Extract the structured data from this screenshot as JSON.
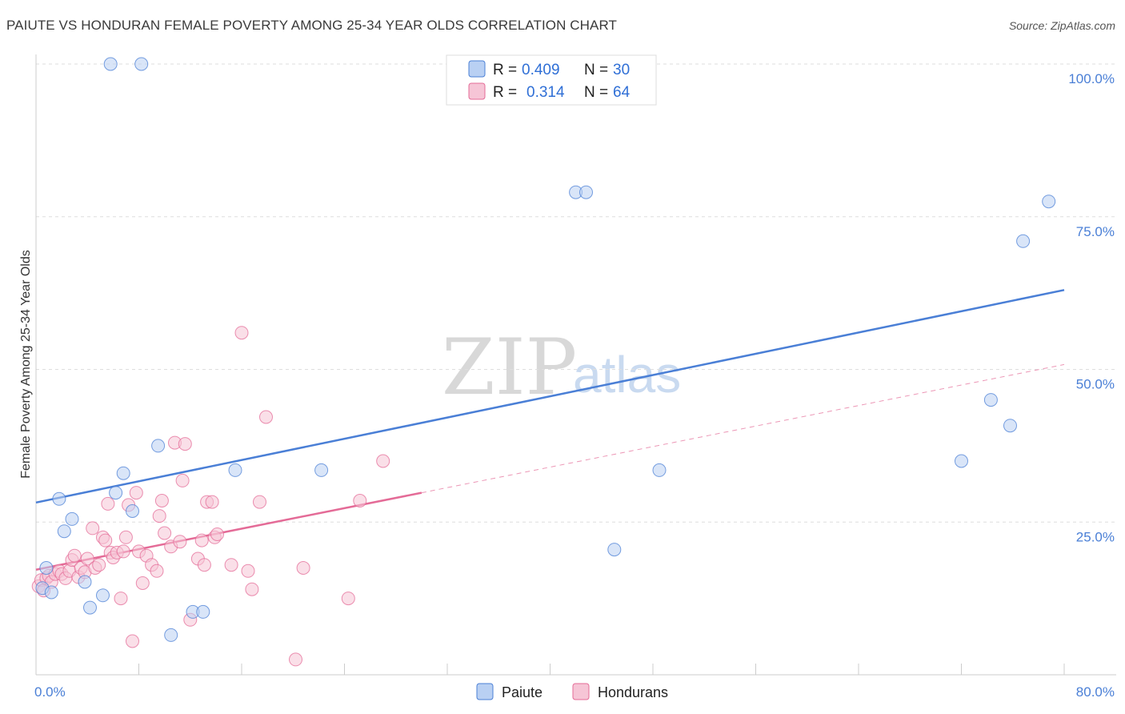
{
  "header": {
    "title": "PAIUTE VS HONDURAN FEMALE POVERTY AMONG 25-34 YEAR OLDS CORRELATION CHART",
    "source": "Source: ZipAtlas.com"
  },
  "watermark": {
    "zip": "ZIP",
    "atlas": "atlas"
  },
  "chart_data": {
    "type": "scatter",
    "title": "PAIUTE VS HONDURAN FEMALE POVERTY AMONG 25-34 YEAR OLDS CORRELATION CHART",
    "xlabel": "",
    "ylabel": "Female Poverty Among 25-34 Year Olds",
    "xlim": [
      0,
      80
    ],
    "ylim": [
      0,
      100
    ],
    "x_tick_labels": [
      "0.0%",
      "80.0%"
    ],
    "y_tick_labels": [
      "25.0%",
      "50.0%",
      "75.0%",
      "100.0%"
    ],
    "y_tick_values": [
      25,
      50,
      75,
      100
    ],
    "grid": "horizontal dashed",
    "legend_position": "top-center",
    "series": [
      {
        "name": "Paiute",
        "color": "#4a7fd6",
        "fill": "#b9d0f3",
        "R": "0.409",
        "N": "30",
        "trend": {
          "x": [
            0,
            80
          ],
          "y": [
            28.2,
            63.0
          ],
          "style": "solid"
        },
        "points": [
          [
            0.8,
            17.5
          ],
          [
            0.5,
            14.2
          ],
          [
            1.2,
            13.5
          ],
          [
            1.8,
            28.8
          ],
          [
            2.2,
            23.5
          ],
          [
            2.8,
            25.5
          ],
          [
            3.8,
            15.2
          ],
          [
            4.2,
            11.0
          ],
          [
            5.2,
            13.0
          ],
          [
            5.8,
            100.0
          ],
          [
            6.2,
            29.8
          ],
          [
            6.8,
            33.0
          ],
          [
            7.5,
            26.8
          ],
          [
            8.2,
            100.0
          ],
          [
            9.5,
            37.5
          ],
          [
            10.5,
            6.5
          ],
          [
            12.2,
            10.3
          ],
          [
            13.0,
            10.3
          ],
          [
            15.5,
            33.5
          ],
          [
            22.2,
            33.5
          ],
          [
            34.5,
            100.0
          ],
          [
            42.0,
            79.0
          ],
          [
            42.8,
            79.0
          ],
          [
            45.0,
            20.5
          ],
          [
            48.5,
            33.5
          ],
          [
            72.0,
            35.0
          ],
          [
            74.3,
            45.0
          ],
          [
            75.8,
            40.8
          ],
          [
            76.8,
            71.0
          ],
          [
            78.8,
            77.5
          ]
        ]
      },
      {
        "name": "Hondurans",
        "color": "#e46b97",
        "fill": "#f6c5d6",
        "R": "0.314",
        "N": "64",
        "trend": {
          "x": [
            0,
            30
          ],
          "y": [
            17.2,
            29.8
          ],
          "style": "solid"
        },
        "trend_extension": {
          "x": [
            30,
            80
          ],
          "y": [
            29.8,
            50.8
          ],
          "style": "dashed"
        },
        "points": [
          [
            0.2,
            14.5
          ],
          [
            0.4,
            15.5
          ],
          [
            0.6,
            13.8
          ],
          [
            0.8,
            15.8
          ],
          [
            1.0,
            16.2
          ],
          [
            1.2,
            15.2
          ],
          [
            1.5,
            16.5
          ],
          [
            1.8,
            17.0
          ],
          [
            2.0,
            16.5
          ],
          [
            2.3,
            15.8
          ],
          [
            2.6,
            17.0
          ],
          [
            2.8,
            18.8
          ],
          [
            3.0,
            19.5
          ],
          [
            3.3,
            16.0
          ],
          [
            3.5,
            17.5
          ],
          [
            3.8,
            16.8
          ],
          [
            4.0,
            19.0
          ],
          [
            4.4,
            24.0
          ],
          [
            4.6,
            17.5
          ],
          [
            4.9,
            18.0
          ],
          [
            5.2,
            22.5
          ],
          [
            5.4,
            22.0
          ],
          [
            5.6,
            28.0
          ],
          [
            5.8,
            20.0
          ],
          [
            6.0,
            19.2
          ],
          [
            6.3,
            20.0
          ],
          [
            6.6,
            12.5
          ],
          [
            6.8,
            20.2
          ],
          [
            7.0,
            22.5
          ],
          [
            7.2,
            27.8
          ],
          [
            7.5,
            5.5
          ],
          [
            7.8,
            29.8
          ],
          [
            8.0,
            20.2
          ],
          [
            8.3,
            15.0
          ],
          [
            8.6,
            19.5
          ],
          [
            9.0,
            18.0
          ],
          [
            9.4,
            17.0
          ],
          [
            9.6,
            26.0
          ],
          [
            9.8,
            28.5
          ],
          [
            10.0,
            23.2
          ],
          [
            10.5,
            21.0
          ],
          [
            10.8,
            38.0
          ],
          [
            11.2,
            21.8
          ],
          [
            11.4,
            31.8
          ],
          [
            11.6,
            37.8
          ],
          [
            12.0,
            9.0
          ],
          [
            12.6,
            19.0
          ],
          [
            12.9,
            22.0
          ],
          [
            13.1,
            18.0
          ],
          [
            13.3,
            28.3
          ],
          [
            13.7,
            28.3
          ],
          [
            13.9,
            22.5
          ],
          [
            14.1,
            23.0
          ],
          [
            15.2,
            18.0
          ],
          [
            16.0,
            56.0
          ],
          [
            16.5,
            17.0
          ],
          [
            16.8,
            14.0
          ],
          [
            17.4,
            28.3
          ],
          [
            17.9,
            42.2
          ],
          [
            20.2,
            2.5
          ],
          [
            20.8,
            17.5
          ],
          [
            24.3,
            12.5
          ],
          [
            25.2,
            28.5
          ],
          [
            27.0,
            35.0
          ]
        ]
      }
    ]
  }
}
